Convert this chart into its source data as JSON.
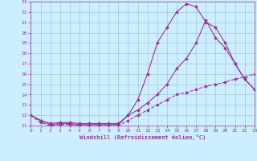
{
  "xlabel": "Windchill (Refroidissement éolien,°C)",
  "bg_color": "#cceeff",
  "grid_color": "#99bbcc",
  "line_color": "#993399",
  "xlim": [
    0,
    23
  ],
  "ylim": [
    11,
    23
  ],
  "xticks": [
    0,
    1,
    2,
    3,
    4,
    5,
    6,
    7,
    8,
    9,
    10,
    11,
    12,
    13,
    14,
    15,
    16,
    17,
    18,
    19,
    20,
    21,
    22,
    23
  ],
  "yticks": [
    11,
    12,
    13,
    14,
    15,
    16,
    17,
    18,
    19,
    20,
    21,
    22,
    23
  ],
  "series1": {
    "x": [
      0,
      1,
      2,
      3,
      4,
      5,
      6,
      7,
      8,
      9,
      10,
      11,
      12,
      13,
      14,
      15,
      16,
      17,
      18,
      19,
      20,
      21,
      22,
      23
    ],
    "y": [
      12,
      11.5,
      11.1,
      11.2,
      11.2,
      11.1,
      11.1,
      11.1,
      11.1,
      11.1,
      12.0,
      13.5,
      16.0,
      19.0,
      20.5,
      22.0,
      22.8,
      22.5,
      21.0,
      20.5,
      19.0,
      17.0,
      15.5,
      14.5
    ],
    "style": "-",
    "marker": "D"
  },
  "series2": {
    "x": [
      0,
      1,
      2,
      3,
      4,
      5,
      6,
      7,
      8,
      9,
      10,
      11,
      12,
      13,
      14,
      15,
      16,
      17,
      18,
      19,
      20,
      21,
      22,
      23
    ],
    "y": [
      12,
      11.5,
      11.2,
      11.3,
      11.3,
      11.2,
      11.2,
      11.2,
      11.2,
      11.2,
      12.0,
      12.5,
      13.2,
      14.0,
      15.0,
      16.5,
      17.5,
      19.0,
      21.2,
      19.5,
      18.5,
      17.0,
      15.5,
      14.5
    ],
    "style": "-",
    "marker": "D"
  },
  "series3": {
    "x": [
      0,
      1,
      2,
      3,
      4,
      5,
      6,
      7,
      8,
      9,
      10,
      11,
      12,
      13,
      14,
      15,
      16,
      17,
      18,
      19,
      20,
      21,
      22,
      23
    ],
    "y": [
      12,
      11.3,
      11.0,
      11.1,
      11.1,
      11.0,
      11.0,
      11.0,
      11.0,
      11.0,
      11.5,
      12.0,
      12.5,
      13.0,
      13.5,
      14.0,
      14.2,
      14.5,
      14.8,
      15.0,
      15.2,
      15.5,
      15.7,
      16.0
    ],
    "style": "--",
    "marker": "D"
  }
}
